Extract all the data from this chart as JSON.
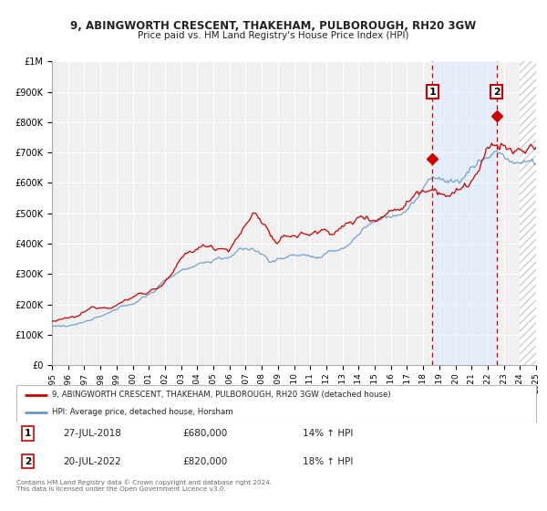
{
  "title": "9, ABINGWORTH CRESCENT, THAKEHAM, PULBOROUGH, RH20 3GW",
  "subtitle": "Price paid vs. HM Land Registry's House Price Index (HPI)",
  "background_color": "#ffffff",
  "plot_bg_color": "#f0f0f0",
  "grid_color": "#ffffff",
  "red_line_color": "#cc0000",
  "blue_line_color": "#6699cc",
  "xlim": [
    1995,
    2025
  ],
  "ylim": [
    0,
    1000000
  ],
  "yticks": [
    0,
    100000,
    200000,
    300000,
    400000,
    500000,
    600000,
    700000,
    800000,
    900000,
    1000000
  ],
  "ytick_labels": [
    "£0",
    "£100K",
    "£200K",
    "£300K",
    "£400K",
    "£500K",
    "£600K",
    "£700K",
    "£800K",
    "£900K",
    "£1M"
  ],
  "xticks": [
    1995,
    1996,
    1997,
    1998,
    1999,
    2000,
    2001,
    2002,
    2003,
    2004,
    2005,
    2006,
    2007,
    2008,
    2009,
    2010,
    2011,
    2012,
    2013,
    2014,
    2015,
    2016,
    2017,
    2018,
    2019,
    2020,
    2021,
    2022,
    2023,
    2024,
    2025
  ],
  "sale1_x": 2018.57,
  "sale1_y": 680000,
  "sale1_label": "1",
  "sale1_date": "27-JUL-2018",
  "sale1_price": "£680,000",
  "sale1_hpi": "14% ↑ HPI",
  "sale2_x": 2022.55,
  "sale2_y": 820000,
  "sale2_label": "2",
  "sale2_date": "20-JUL-2022",
  "sale2_price": "£820,000",
  "sale2_hpi": "18% ↑ HPI",
  "legend_line1": "9, ABINGWORTH CRESCENT, THAKEHAM, PULBOROUGH, RH20 3GW (detached house)",
  "legend_line2": "HPI: Average price, detached house, Horsham",
  "footnote": "Contains HM Land Registry data © Crown copyright and database right 2024.\nThis data is licensed under the Open Government Licence v3.0.",
  "vline_color": "#cc0000",
  "sale_marker_color": "#cc0000",
  "sale_box_color": "#cc0000",
  "shade_color": "#ddeeff",
  "hatch_color": "#dddddd"
}
